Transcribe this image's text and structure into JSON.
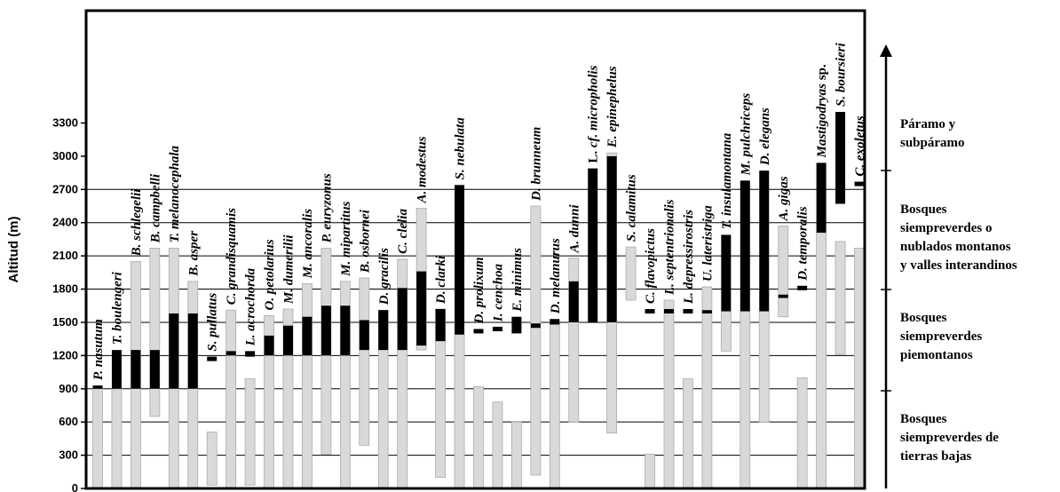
{
  "chart_data": {
    "type": "range-bar",
    "ylabel": "Altitud (m)",
    "ylim": [
      0,
      3750
    ],
    "yticks": [
      0,
      300,
      600,
      900,
      1200,
      1500,
      1800,
      2100,
      2400,
      2700,
      3000,
      3300
    ],
    "series": [
      {
        "name": "grey",
        "color": "#d9d9d9"
      },
      {
        "name": "black",
        "color": "#000000"
      }
    ],
    "species": [
      {
        "name": "P. nasutum",
        "prefix": "",
        "suffix": "",
        "grey": [
          0,
          900
        ],
        "black": [
          900,
          930
        ]
      },
      {
        "name": "T. boulengeri",
        "prefix": "",
        "suffix": "",
        "grey": [
          0,
          900
        ],
        "black": [
          900,
          1250
        ]
      },
      {
        "name": "B. schlegelii",
        "prefix": "",
        "suffix": "",
        "grey": [
          0,
          2050
        ],
        "black": [
          900,
          1250
        ]
      },
      {
        "name": "B. campbelli",
        "prefix": "",
        "suffix": "",
        "grey": [
          650,
          2170
        ],
        "black": [
          900,
          1250
        ]
      },
      {
        "name": "T. melanocephala",
        "prefix": "",
        "suffix": "",
        "grey": [
          0,
          2170
        ],
        "black": [
          900,
          1580
        ]
      },
      {
        "name": "B. asper",
        "prefix": "",
        "suffix": "",
        "grey": [
          0,
          1870
        ],
        "black": [
          900,
          1580
        ]
      },
      {
        "name": "S. pullatus",
        "prefix": "",
        "suffix": "",
        "grey": [
          30,
          510
        ],
        "black": [
          1150,
          1190
        ]
      },
      {
        "name": "C. grandisquamis",
        "prefix": "",
        "suffix": "",
        "grey": [
          0,
          1610
        ],
        "black": [
          1200,
          1240
        ]
      },
      {
        "name": "L. acrochorda",
        "prefix": "",
        "suffix": "",
        "grey": [
          30,
          990
        ],
        "black": [
          1190,
          1240
        ]
      },
      {
        "name": "O. petolarius",
        "prefix": "",
        "suffix": "",
        "grey": [
          0,
          1560
        ],
        "black": [
          1200,
          1380
        ]
      },
      {
        "name": "M. dumerilii",
        "prefix": "",
        "suffix": "",
        "grey": [
          0,
          1620
        ],
        "black": [
          1200,
          1470
        ]
      },
      {
        "name": "M. ancoralis",
        "prefix": "",
        "suffix": "",
        "grey": [
          0,
          1850
        ],
        "black": [
          1200,
          1550
        ]
      },
      {
        "name": "P. euryzonus",
        "prefix": "",
        "suffix": "",
        "grey": [
          310,
          2170
        ],
        "black": [
          1200,
          1650
        ]
      },
      {
        "name": "M. mipartitus",
        "prefix": "",
        "suffix": "",
        "grey": [
          0,
          1870
        ],
        "black": [
          1200,
          1650
        ]
      },
      {
        "name": "B. osbornei",
        "prefix": "",
        "suffix": "",
        "grey": [
          390,
          1900
        ],
        "black": [
          1250,
          1520
        ]
      },
      {
        "name": "D. gracilis",
        "prefix": "",
        "suffix": "",
        "grey": [
          0,
          1610
        ],
        "black": [
          1250,
          1610
        ]
      },
      {
        "name": "C. clelia",
        "prefix": "",
        "suffix": "",
        "grey": [
          0,
          2070
        ],
        "black": [
          1250,
          1810
        ]
      },
      {
        "name": "A. modestus",
        "prefix": "",
        "suffix": "",
        "grey": [
          1250,
          2530
        ],
        "black": [
          1290,
          1960
        ]
      },
      {
        "name": "D. clarki",
        "prefix": "",
        "suffix": "",
        "grey": [
          100,
          1620
        ],
        "black": [
          1330,
          1620
        ]
      },
      {
        "name": "S. nebulata",
        "prefix": "",
        "suffix": "",
        "grey": [
          0,
          1390
        ],
        "black": [
          1390,
          2740
        ]
      },
      {
        "name": "D. prolixum",
        "prefix": "",
        "suffix": "",
        "grey": [
          0,
          920
        ],
        "black": [
          1400,
          1440
        ]
      },
      {
        "name": "I. cenchoa",
        "prefix": "",
        "suffix": "",
        "grey": [
          0,
          780
        ],
        "black": [
          1420,
          1460
        ]
      },
      {
        "name": "E. minimus",
        "prefix": "",
        "suffix": "",
        "grey": [
          0,
          600
        ],
        "black": [
          1400,
          1550
        ]
      },
      {
        "name": "D. brunneum",
        "prefix": "",
        "suffix": "",
        "grey": [
          120,
          2550
        ],
        "black": [
          1450,
          1490
        ]
      },
      {
        "name": "D. melanurus",
        "prefix": "",
        "suffix": "",
        "grey": [
          0,
          1500
        ],
        "black": [
          1480,
          1530
        ]
      },
      {
        "name": "A. dunni",
        "prefix": "",
        "suffix": "",
        "grey": [
          600,
          2080
        ],
        "black": [
          1500,
          1870
        ]
      },
      {
        "name": "cf. micropholis",
        "prefix": "L.",
        "suffix": "",
        "grey": null,
        "black": [
          1500,
          2890
        ]
      },
      {
        "name": "E. epinephelus",
        "prefix": "",
        "suffix": "",
        "grey": [
          500,
          3030
        ],
        "black": [
          1500,
          3000
        ]
      },
      {
        "name": "S. calamitus",
        "prefix": "",
        "suffix": "",
        "grey": [
          1700,
          2180
        ],
        "black": null
      },
      {
        "name": "C. flavopictus",
        "prefix": "",
        "suffix": "",
        "grey": [
          0,
          310
        ],
        "black": [
          1580,
          1620
        ]
      },
      {
        "name": "L. septentrionalis",
        "prefix": "",
        "suffix": "",
        "grey": [
          0,
          1700
        ],
        "black": [
          1580,
          1620
        ]
      },
      {
        "name": "L. depressirostris",
        "prefix": "",
        "suffix": "",
        "grey": [
          0,
          990
        ],
        "black": [
          1580,
          1620
        ]
      },
      {
        "name": "U. lateristriga",
        "prefix": "",
        "suffix": "",
        "grey": [
          0,
          1820
        ],
        "black": [
          1580,
          1610
        ]
      },
      {
        "name": "T. insulamontana",
        "prefix": "",
        "suffix": "",
        "grey": [
          1240,
          1600
        ],
        "black": [
          1600,
          2290
        ]
      },
      {
        "name": "M. pulchriceps",
        "prefix": "",
        "suffix": "",
        "grey": [
          0,
          1600
        ],
        "black": [
          1600,
          2780
        ]
      },
      {
        "name": "D. elegans",
        "prefix": "",
        "suffix": "",
        "grey": [
          600,
          1600
        ],
        "black": [
          1600,
          2870
        ]
      },
      {
        "name": "A. gigas",
        "prefix": "",
        "suffix": "",
        "grey": [
          1550,
          2370
        ],
        "black": [
          1720,
          1750
        ]
      },
      {
        "name": "D. temporalis",
        "prefix": "",
        "suffix": "",
        "grey": [
          0,
          1000
        ],
        "black": [
          1790,
          1830
        ]
      },
      {
        "name": "sp.",
        "prefix": "Mastigodryas",
        "suffix": "",
        "grey": [
          0,
          2310
        ],
        "black": [
          2310,
          2940
        ]
      },
      {
        "name": "S. boursieri",
        "prefix": "",
        "suffix": "",
        "grey": [
          1210,
          2230
        ],
        "black": [
          2570,
          3400
        ]
      },
      {
        "name": "C. exoletus",
        "prefix": "",
        "suffix": "",
        "grey": [
          0,
          2170
        ],
        "black": [
          2730,
          2770
        ]
      }
    ],
    "zones": [
      {
        "lines": [
          "Páramo y",
          "subpáramo"
        ]
      },
      {
        "lines": [
          "Bosques",
          "siempreverdes o",
          "nublados montanos",
          "y valles interandinos"
        ]
      },
      {
        "lines": [
          "Bosques",
          "siempreverdes",
          "piemontanos"
        ]
      },
      {
        "lines": [
          "Bosques",
          "siempreverdes de",
          "tierras bajas"
        ]
      }
    ],
    "gridlines": [
      300,
      600,
      900,
      1200,
      1500,
      1800,
      2100,
      2400,
      2700
    ]
  }
}
